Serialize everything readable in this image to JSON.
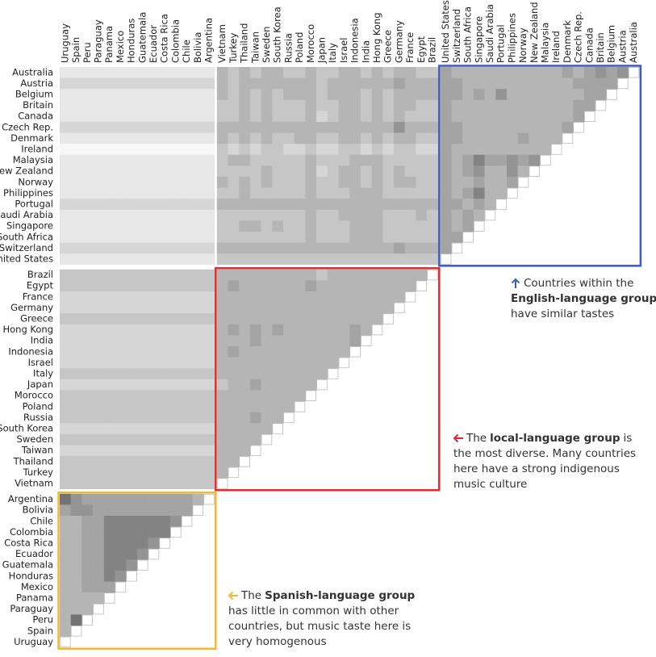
{
  "chart_data": {
    "type": "heatmap",
    "columns": [
      "Uruguay",
      "Spain",
      "Peru",
      "Paraguay",
      "Panama",
      "Mexico",
      "Honduras",
      "Guatemala",
      "Ecuador",
      "Costa Rica",
      "Colombia",
      "Chile",
      "Bolivia",
      "Argentina",
      "Vietnam",
      "Turkey",
      "Thailand",
      "Taiwan",
      "Sweden",
      "South Korea",
      "Russia",
      "Poland",
      "Morocco",
      "Japan",
      "Italy",
      "Israel",
      "Indonesia",
      "India",
      "Hong Kong",
      "Greece",
      "Germany",
      "France",
      "Egypt",
      "Brazil",
      "United States",
      "Switzerland",
      "South Africa",
      "Singapore",
      "Saudi Arabia",
      "Portugal",
      "Philippines",
      "Norway",
      "New Zealand",
      "Malaysia",
      "Ireland",
      "Denmark",
      "Czech Rep.",
      "Canada",
      "Britain",
      "Belgium",
      "Austria",
      "Australia"
    ],
    "rows": [
      "Australia",
      "Austria",
      "Belgium",
      "Britain",
      "Canada",
      "Czech Rep.",
      "Denmark",
      "Ireland",
      "Malaysia",
      "New Zealand",
      "Norway",
      "Philippines",
      "Portugal",
      "Saudi Arabia",
      "Singapore",
      "South Africa",
      "Switzerland",
      "United States",
      "Brazil",
      "Egypt",
      "France",
      "Germany",
      "Greece",
      "Hong Kong",
      "India",
      "Indonesia",
      "Israel",
      "Italy",
      "Japan",
      "Morocco",
      "Poland",
      "Russia",
      "South Korea",
      "Sweden",
      "Taiwan",
      "Thailand",
      "Turkey",
      "Vietnam",
      "Argentina",
      "Bolivia",
      "Chile",
      "Colombia",
      "Costa Rica",
      "Ecuador",
      "Guatemala",
      "Honduras",
      "Mexico",
      "Panama",
      "Paraguay",
      "Peru",
      "Spain",
      "Uruguay"
    ],
    "values": [
      [
        1,
        1,
        1,
        1,
        1,
        1,
        1,
        1,
        1,
        1,
        1,
        1,
        1,
        1,
        4,
        3,
        4,
        3,
        4,
        4,
        3,
        3,
        4,
        3,
        3,
        4,
        4,
        3,
        4,
        3,
        4,
        4,
        3,
        3,
        5,
        4,
        4,
        4,
        4,
        4,
        4,
        4,
        4,
        4,
        4,
        5,
        4,
        5,
        6,
        5,
        6
      ],
      [
        2,
        2,
        2,
        2,
        2,
        2,
        2,
        2,
        2,
        2,
        2,
        2,
        2,
        2,
        4,
        3,
        4,
        4,
        4,
        4,
        4,
        4,
        4,
        3,
        4,
        4,
        4,
        4,
        4,
        4,
        5,
        4,
        4,
        4,
        5,
        5,
        4,
        4,
        4,
        4,
        4,
        4,
        4,
        4,
        4,
        4,
        5,
        5,
        5,
        5
      ],
      [
        1,
        1,
        1,
        1,
        1,
        1,
        1,
        1,
        1,
        1,
        1,
        1,
        1,
        1,
        4,
        3,
        4,
        3,
        4,
        3,
        4,
        4,
        4,
        3,
        4,
        4,
        4,
        3,
        4,
        3,
        4,
        4,
        4,
        4,
        5,
        5,
        4,
        5,
        4,
        6,
        4,
        4,
        4,
        4,
        4,
        4,
        4,
        5,
        5
      ],
      [
        1,
        1,
        1,
        1,
        1,
        1,
        1,
        1,
        1,
        1,
        1,
        1,
        1,
        1,
        3,
        3,
        4,
        3,
        4,
        3,
        3,
        3,
        4,
        3,
        3,
        4,
        4,
        3,
        4,
        3,
        4,
        4,
        3,
        3,
        5,
        4,
        4,
        4,
        4,
        4,
        4,
        4,
        4,
        4,
        4,
        4,
        5,
        5
      ],
      [
        1,
        1,
        1,
        1,
        1,
        1,
        1,
        1,
        1,
        1,
        1,
        1,
        1,
        1,
        3,
        3,
        4,
        3,
        4,
        3,
        3,
        3,
        4,
        2,
        3,
        4,
        4,
        3,
        4,
        3,
        4,
        3,
        3,
        3,
        5,
        4,
        4,
        4,
        4,
        4,
        4,
        4,
        4,
        4,
        4,
        4,
        5
      ],
      [
        2,
        2,
        2,
        2,
        2,
        2,
        2,
        2,
        2,
        2,
        2,
        2,
        2,
        2,
        4,
        4,
        4,
        4,
        4,
        4,
        4,
        4,
        4,
        4,
        4,
        4,
        4,
        4,
        4,
        4,
        6,
        4,
        4,
        4,
        5,
        5,
        4,
        4,
        4,
        4,
        4,
        4,
        4,
        4,
        4,
        5
      ],
      [
        1,
        1,
        1,
        1,
        1,
        1,
        1,
        1,
        1,
        1,
        1,
        1,
        1,
        1,
        4,
        3,
        4,
        3,
        4,
        3,
        3,
        4,
        4,
        3,
        3,
        4,
        4,
        3,
        4,
        3,
        4,
        4,
        3,
        3,
        5,
        5,
        4,
        4,
        4,
        4,
        4,
        5,
        4,
        4,
        4
      ],
      [
        0,
        0,
        0,
        0,
        0,
        0,
        0,
        0,
        0,
        0,
        0,
        0,
        0,
        0,
        3,
        2,
        3,
        2,
        3,
        3,
        2,
        2,
        3,
        2,
        2,
        3,
        3,
        2,
        3,
        2,
        3,
        3,
        2,
        2,
        5,
        4,
        4,
        4,
        4,
        4,
        4,
        4,
        4,
        4
      ],
      [
        1,
        1,
        1,
        1,
        1,
        1,
        1,
        1,
        1,
        1,
        1,
        1,
        1,
        1,
        3,
        4,
        4,
        3,
        3,
        3,
        3,
        3,
        4,
        3,
        3,
        3,
        4,
        4,
        4,
        3,
        3,
        3,
        3,
        3,
        5,
        4,
        5,
        7,
        5,
        5,
        6,
        5,
        6
      ],
      [
        1,
        1,
        1,
        1,
        1,
        1,
        1,
        1,
        1,
        1,
        1,
        1,
        1,
        1,
        3,
        3,
        3,
        3,
        4,
        3,
        3,
        3,
        4,
        2,
        3,
        4,
        4,
        3,
        4,
        3,
        4,
        3,
        3,
        3,
        5,
        4,
        5,
        6,
        4,
        4,
        6,
        4
      ],
      [
        1,
        1,
        1,
        1,
        1,
        1,
        1,
        1,
        1,
        1,
        1,
        1,
        1,
        1,
        4,
        3,
        4,
        3,
        4,
        3,
        3,
        3,
        4,
        3,
        3,
        4,
        4,
        3,
        4,
        3,
        4,
        4,
        3,
        3,
        5,
        4,
        4,
        5,
        4,
        4,
        5
      ],
      [
        1,
        1,
        1,
        1,
        1,
        1,
        1,
        1,
        1,
        1,
        1,
        1,
        1,
        1,
        3,
        3,
        4,
        3,
        3,
        3,
        3,
        3,
        4,
        3,
        3,
        3,
        4,
        4,
        4,
        3,
        3,
        3,
        3,
        3,
        5,
        4,
        5,
        7,
        4,
        4
      ],
      [
        2,
        2,
        2,
        2,
        2,
        2,
        2,
        2,
        2,
        2,
        2,
        2,
        2,
        2,
        4,
        4,
        4,
        4,
        4,
        4,
        4,
        4,
        4,
        4,
        4,
        4,
        4,
        4,
        4,
        4,
        4,
        4,
        4,
        4,
        5,
        5,
        4,
        5,
        4
      ],
      [
        1,
        1,
        1,
        1,
        1,
        1,
        1,
        1,
        1,
        1,
        1,
        1,
        1,
        1,
        3,
        3,
        3,
        3,
        3,
        3,
        3,
        3,
        4,
        3,
        3,
        4,
        4,
        4,
        4,
        3,
        3,
        3,
        4,
        3,
        5,
        4,
        5,
        4
      ],
      [
        1,
        1,
        1,
        1,
        1,
        1,
        1,
        1,
        1,
        1,
        1,
        1,
        1,
        1,
        3,
        3,
        4,
        4,
        3,
        4,
        3,
        3,
        4,
        3,
        3,
        3,
        4,
        4,
        4,
        3,
        3,
        3,
        3,
        3,
        5,
        4,
        5
      ],
      [
        1,
        1,
        1,
        1,
        1,
        1,
        1,
        1,
        1,
        1,
        1,
        1,
        1,
        1,
        3,
        3,
        3,
        3,
        3,
        3,
        3,
        3,
        4,
        3,
        3,
        3,
        4,
        4,
        4,
        3,
        3,
        3,
        3,
        3,
        5,
        5
      ],
      [
        2,
        2,
        2,
        2,
        2,
        2,
        2,
        2,
        2,
        2,
        2,
        2,
        2,
        2,
        4,
        4,
        4,
        4,
        4,
        4,
        4,
        4,
        4,
        4,
        4,
        4,
        4,
        4,
        4,
        4,
        5,
        4,
        4,
        4,
        5
      ],
      [
        1,
        1,
        1,
        1,
        1,
        1,
        1,
        1,
        1,
        1,
        1,
        1,
        1,
        1,
        3,
        3,
        3,
        3,
        3,
        3,
        3,
        3,
        3,
        3,
        3,
        3,
        3,
        3,
        3,
        3,
        3,
        3,
        3,
        3
      ],
      [
        3,
        3,
        3,
        3,
        3,
        3,
        3,
        3,
        3,
        3,
        3,
        3,
        3,
        3,
        4,
        4,
        4,
        4,
        4,
        4,
        4,
        4,
        4,
        3,
        4,
        4,
        4,
        4,
        4,
        4,
        4,
        4,
        4
      ],
      [
        3,
        3,
        3,
        3,
        3,
        3,
        3,
        3,
        3,
        3,
        3,
        3,
        3,
        3,
        4,
        5,
        4,
        4,
        4,
        4,
        4,
        4,
        5,
        4,
        4,
        4,
        4,
        4,
        4,
        4,
        4,
        4
      ],
      [
        2,
        2,
        2,
        2,
        2,
        2,
        2,
        2,
        2,
        2,
        2,
        2,
        2,
        2,
        4,
        4,
        4,
        4,
        4,
        4,
        4,
        4,
        4,
        4,
        4,
        4,
        4,
        4,
        4,
        4,
        4
      ],
      [
        2,
        2,
        2,
        2,
        2,
        2,
        2,
        2,
        2,
        2,
        2,
        2,
        2,
        2,
        4,
        4,
        4,
        4,
        4,
        4,
        4,
        4,
        4,
        4,
        4,
        4,
        4,
        4,
        4,
        4
      ],
      [
        3,
        3,
        3,
        3,
        3,
        3,
        3,
        3,
        3,
        3,
        3,
        3,
        3,
        3,
        4,
        4,
        4,
        4,
        4,
        4,
        4,
        4,
        4,
        4,
        4,
        4,
        4,
        4,
        4
      ],
      [
        2,
        2,
        2,
        2,
        2,
        2,
        2,
        2,
        2,
        2,
        2,
        2,
        2,
        2,
        4,
        5,
        4,
        5,
        4,
        5,
        4,
        4,
        4,
        4,
        4,
        4,
        5,
        4
      ],
      [
        2,
        2,
        2,
        2,
        2,
        2,
        2,
        2,
        2,
        2,
        2,
        2,
        2,
        2,
        4,
        4,
        4,
        5,
        4,
        4,
        4,
        4,
        4,
        4,
        4,
        4,
        5
      ],
      [
        2,
        2,
        2,
        2,
        2,
        2,
        2,
        2,
        2,
        2,
        2,
        2,
        2,
        2,
        4,
        5,
        4,
        4,
        4,
        4,
        4,
        4,
        4,
        4,
        4,
        4
      ],
      [
        2,
        2,
        2,
        2,
        2,
        2,
        2,
        2,
        2,
        2,
        2,
        2,
        2,
        2,
        4,
        4,
        4,
        4,
        4,
        4,
        4,
        4,
        4,
        4,
        4
      ],
      [
        3,
        3,
        3,
        3,
        3,
        3,
        3,
        3,
        3,
        3,
        3,
        3,
        3,
        3,
        4,
        4,
        4,
        4,
        4,
        4,
        4,
        4,
        4,
        4
      ],
      [
        2,
        2,
        2,
        2,
        2,
        2,
        2,
        2,
        2,
        2,
        2,
        2,
        2,
        2,
        3,
        4,
        4,
        5,
        4,
        4,
        4,
        4,
        4
      ],
      [
        3,
        3,
        3,
        3,
        3,
        3,
        3,
        3,
        3,
        3,
        3,
        3,
        3,
        3,
        4,
        4,
        4,
        4,
        4,
        4,
        4,
        4
      ],
      [
        3,
        3,
        3,
        3,
        3,
        3,
        3,
        3,
        3,
        3,
        3,
        3,
        3,
        3,
        4,
        4,
        4,
        4,
        4,
        4,
        4
      ],
      [
        3,
        3,
        3,
        3,
        3,
        3,
        3,
        3,
        3,
        3,
        3,
        3,
        3,
        3,
        4,
        4,
        4,
        5,
        4,
        4
      ],
      [
        2,
        2,
        2,
        2,
        2,
        2,
        2,
        2,
        2,
        2,
        2,
        2,
        2,
        2,
        4,
        4,
        4,
        4,
        4
      ],
      [
        3,
        3,
        3,
        3,
        3,
        3,
        3,
        3,
        3,
        3,
        3,
        3,
        3,
        3,
        4,
        4,
        4,
        4
      ],
      [
        2,
        2,
        2,
        2,
        2,
        2,
        2,
        2,
        2,
        2,
        2,
        2,
        2,
        2,
        4,
        4,
        4
      ],
      [
        3,
        3,
        3,
        3,
        3,
        3,
        3,
        3,
        3,
        3,
        3,
        3,
        3,
        3,
        4,
        4
      ],
      [
        3,
        3,
        3,
        3,
        3,
        3,
        3,
        3,
        3,
        3,
        3,
        3,
        3,
        3,
        4
      ],
      [
        3,
        3,
        3,
        3,
        3,
        3,
        3,
        3,
        3,
        3,
        3,
        3,
        3,
        3
      ],
      [
        8,
        6,
        5,
        5,
        5,
        5,
        5,
        5,
        5,
        5,
        5,
        5,
        4
      ],
      [
        5,
        6,
        6,
        5,
        5,
        5,
        5,
        5,
        5,
        5,
        5,
        5
      ],
      [
        4,
        4,
        5,
        5,
        7,
        7,
        7,
        7,
        7,
        7,
        6
      ],
      [
        4,
        4,
        5,
        5,
        7,
        7,
        7,
        7,
        7,
        7
      ],
      [
        4,
        4,
        5,
        5,
        7,
        7,
        7,
        7,
        6
      ],
      [
        4,
        4,
        5,
        5,
        7,
        7,
        7,
        6
      ],
      [
        4,
        4,
        5,
        5,
        7,
        7,
        6
      ],
      [
        4,
        4,
        5,
        5,
        7,
        6
      ],
      [
        4,
        4,
        5,
        5,
        5
      ],
      [
        4,
        4,
        4,
        4
      ],
      [
        4,
        4,
        4
      ],
      [
        4,
        8
      ],
      [
        4
      ],
      []
    ],
    "box_colors": [
      "#3f5ab8",
      "#e8262d",
      "#f5b731"
    ],
    "annotations": [
      {
        "color": "#3f5ab8",
        "lines": [
          [
            {
              "text": "Countries within the"
            }
          ],
          [
            {
              "text": "English-language group",
              "bold": true
            }
          ],
          [
            {
              "text": "have similar tastes"
            }
          ]
        ]
      },
      {
        "color": "#e8262d",
        "lines": [
          [
            {
              "text": "The"
            },
            {
              "text": "local-language group",
              "bold": true
            },
            {
              "text": "is"
            }
          ],
          [
            {
              "text": "the most diverse. Many countries"
            }
          ],
          [
            {
              "text": "here have a strong indigenous"
            }
          ],
          [
            {
              "text": "music culture"
            }
          ]
        ]
      },
      {
        "color": "#f5b731",
        "lines": [
          [
            {
              "text": "The"
            },
            {
              "text": "Spanish-language group",
              "bold": true
            }
          ],
          [
            {
              "text": "has little in common with other"
            }
          ],
          [
            {
              "text": "countries, but music taste here is"
            }
          ],
          [
            {
              "text": "very homogenous"
            }
          ]
        ]
      }
    ]
  }
}
